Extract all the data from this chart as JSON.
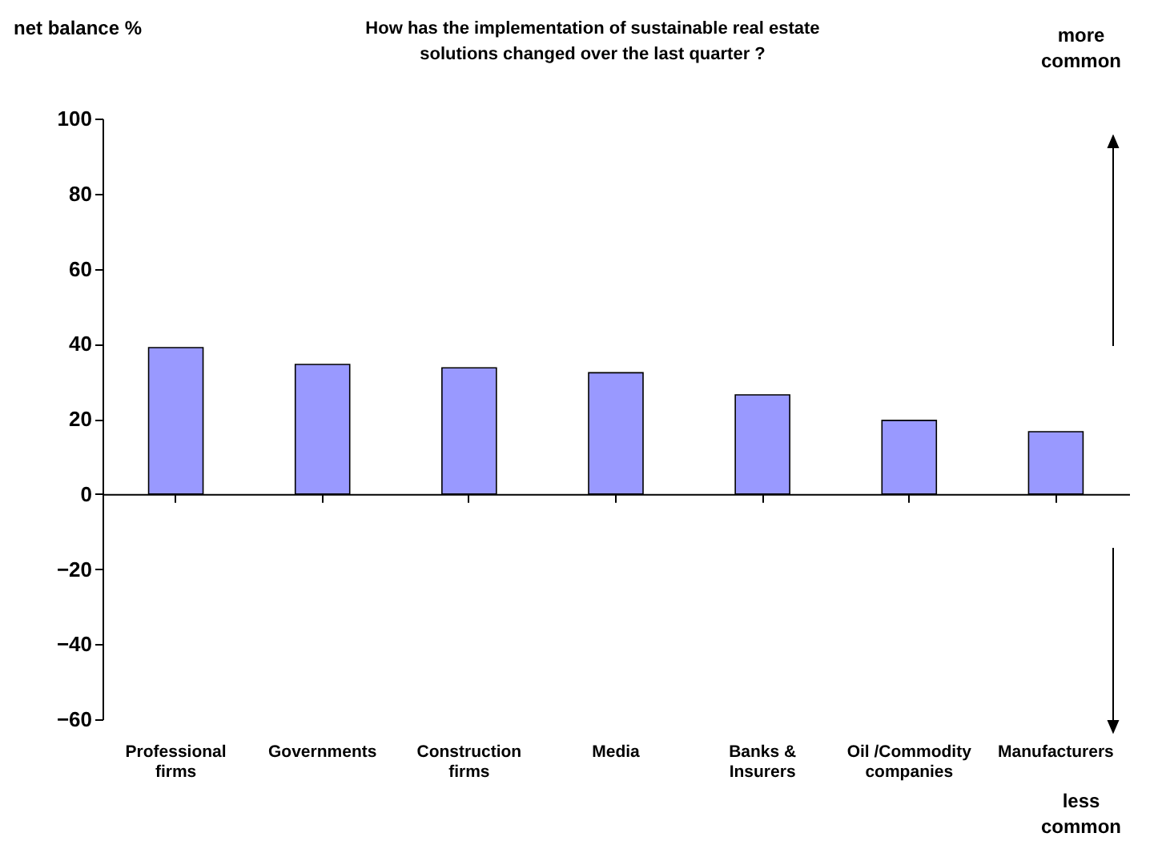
{
  "chart_data": {
    "type": "bar",
    "title": [
      "How has the implementation of sustainable real estate",
      "solutions changed over the last quarter ?"
    ],
    "ylabel": "net balance %",
    "categories": [
      "Professional firms",
      "Governments",
      "Construction firms",
      "Media",
      "Banks & Insurers",
      "Oil /Commodity companies",
      "Manufacturers"
    ],
    "values": [
      39,
      34.5,
      33.6,
      32.3,
      26.4,
      19.6,
      16.6
    ],
    "color": "#9999ff",
    "ylim": [
      -60,
      100
    ],
    "yticks": [
      -60,
      -40,
      -20,
      0,
      20,
      40,
      60,
      80,
      100
    ],
    "annotations": [
      "more common",
      "less common"
    ]
  }
}
